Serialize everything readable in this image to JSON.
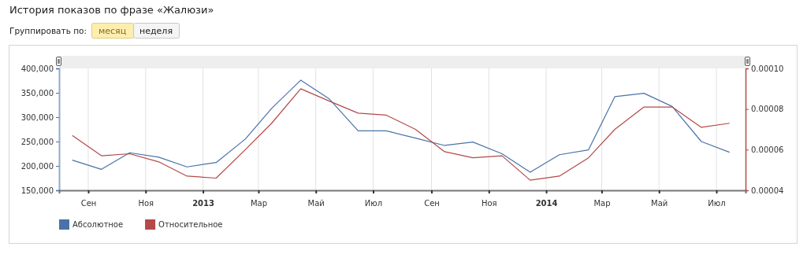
{
  "chart_data": {
    "type": "line",
    "title": "История показов по фразе «Жалюзи»",
    "annotations": [
      "Группировать по:",
      "месяц",
      "неделя"
    ],
    "x": [
      "2012-08-15",
      "2012-09-15",
      "2012-10-15",
      "2012-11-15",
      "2012-12-15",
      "2013-01-15",
      "2013-02-15",
      "2013-03-15",
      "2013-04-15",
      "2013-05-15",
      "2013-06-15",
      "2013-07-15",
      "2013-08-15",
      "2013-09-15",
      "2013-10-15",
      "2013-11-15",
      "2013-12-15",
      "2014-01-15",
      "2014-02-15",
      "2014-03-15",
      "2014-04-15",
      "2014-05-15",
      "2014-06-15",
      "2014-07-15"
    ],
    "series": [
      {
        "name": "Абсолютное",
        "color": "#4a72a8",
        "values": [
          212000,
          193000,
          227000,
          218000,
          198000,
          207000,
          255000,
          318000,
          376000,
          338000,
          272000,
          272000,
          257000,
          242000,
          249000,
          225000,
          187000,
          223000,
          233000,
          342000,
          349000,
          322000,
          250000,
          228000
        ]
      },
      {
        "name": "Относительное",
        "color": "#b54848",
        "axis": "y2",
        "values": [
          6.7e-05,
          5.7e-05,
          5.8e-05,
          5.4e-05,
          4.7e-05,
          4.6e-05,
          6e-05,
          7.3e-05,
          9e-05,
          8.4e-05,
          7.8e-05,
          7.7e-05,
          7e-05,
          5.9e-05,
          5.6e-05,
          5.7e-05,
          4.5e-05,
          4.7e-05,
          5.6e-05,
          7e-05,
          8.1e-05,
          8.1e-05,
          7.1e-05,
          7.3e-05
        ]
      }
    ],
    "xlim": [
      "2012-08-01",
      "2014-08-01"
    ],
    "xticks": [
      {
        "value": "2012-09-01",
        "label": "Сен"
      },
      {
        "value": "2012-11-01",
        "label": "Ноя"
      },
      {
        "value": "2013-01-01",
        "label": "2013"
      },
      {
        "value": "2013-03-01",
        "label": "Мар"
      },
      {
        "value": "2013-05-01",
        "label": "Май"
      },
      {
        "value": "2013-07-01",
        "label": "Июл"
      },
      {
        "value": "2013-09-01",
        "label": "Сен"
      },
      {
        "value": "2013-11-01",
        "label": "Ноя"
      },
      {
        "value": "2014-01-01",
        "label": "2014"
      },
      {
        "value": "2014-03-01",
        "label": "Мар"
      },
      {
        "value": "2014-05-01",
        "label": "Май"
      },
      {
        "value": "2014-07-01",
        "label": "Июл"
      }
    ],
    "ylim": [
      150000,
      400000
    ],
    "yticks": [
      {
        "value": 150000,
        "label": "150,000"
      },
      {
        "value": 200000,
        "label": "200,000"
      },
      {
        "value": 250000,
        "label": "250,000"
      },
      {
        "value": 300000,
        "label": "300,000"
      },
      {
        "value": 350000,
        "label": "350,000"
      },
      {
        "value": 400000,
        "label": "400,000"
      }
    ],
    "y2lim": [
      4e-05,
      0.0001
    ],
    "y2ticks": [
      {
        "value": 4e-05,
        "label": "0.00004"
      },
      {
        "value": 6e-05,
        "label": "0.00006"
      },
      {
        "value": 8e-05,
        "label": "0.00008"
      },
      {
        "value": 0.0001,
        "label": "0.00010"
      }
    ],
    "grid": "x",
    "legend": "bottom left",
    "marker": "none",
    "line_style": "solid"
  }
}
